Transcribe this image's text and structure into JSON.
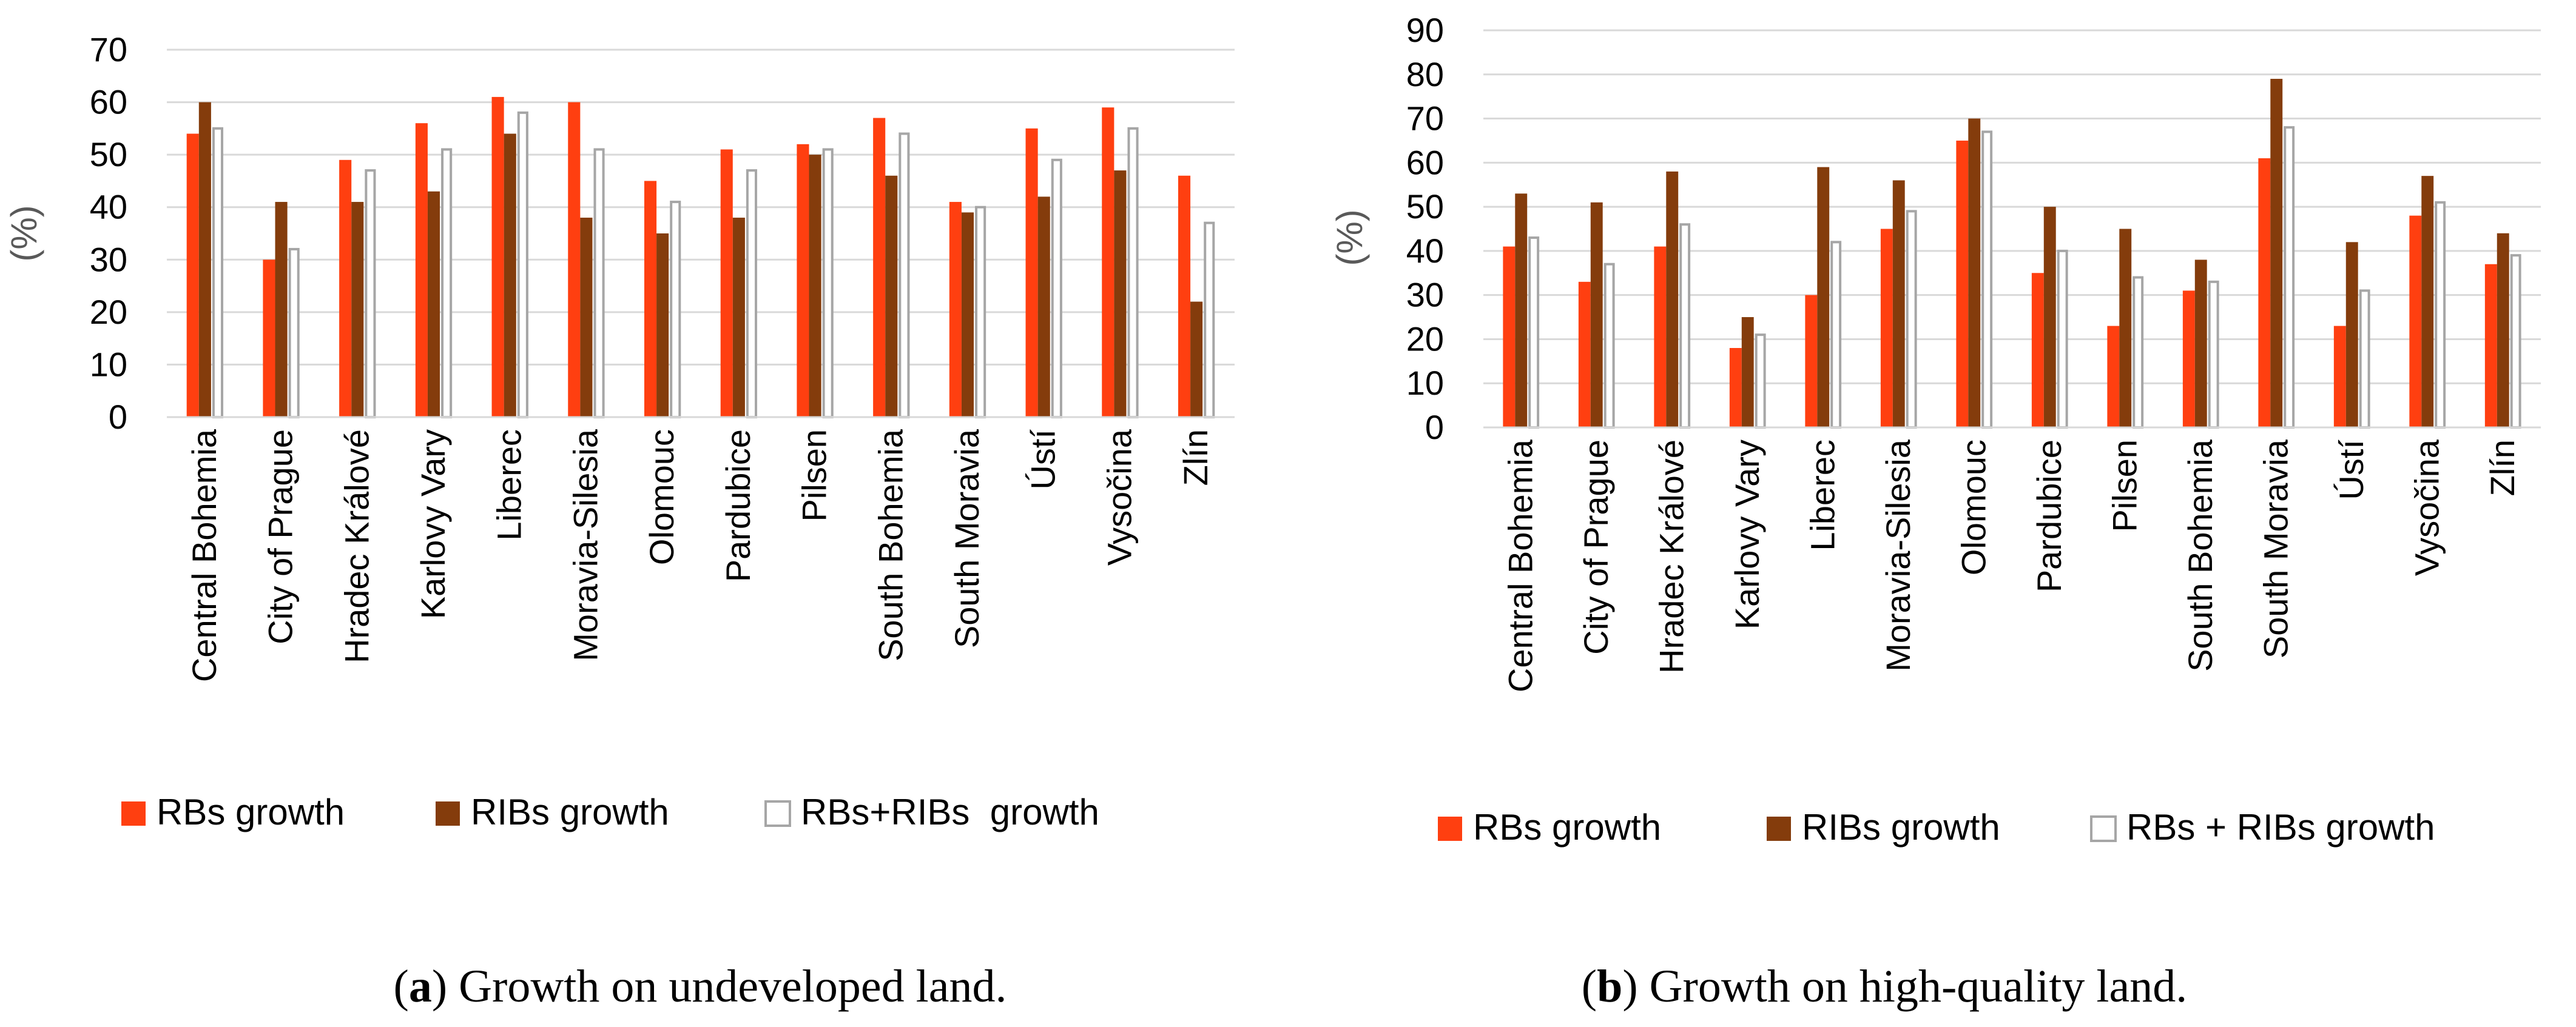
{
  "colors": {
    "rbs": "#FF3F10",
    "ribs": "#843C0C",
    "combined_fill": "#FFFFFF",
    "combined_stroke": "#A6A6A6",
    "grid": "#D9D9D9",
    "axis_text": "#595959"
  },
  "chart_data": [
    {
      "type": "bar",
      "ylabel": "(%)",
      "ylim": [
        0,
        70
      ],
      "yticks": [
        "0",
        "10",
        "20",
        "30",
        "40",
        "50",
        "60",
        "70"
      ],
      "grid": true,
      "legend": "bottom",
      "categories": [
        "Central Bohemia",
        "City of Prague",
        "Hradec Králové",
        "Karlovy Vary",
        "Liberec",
        "Moravia-Silesia",
        "Olomouc",
        "Pardubice",
        "Pilsen",
        "South Bohemia",
        "South Moravia",
        "Ústí",
        "Vysočina",
        "Zlín"
      ],
      "series": [
        {
          "name": "RBs growth",
          "values": [
            54,
            30,
            49,
            56,
            61,
            60,
            45,
            51,
            52,
            57,
            41,
            55,
            59,
            46
          ]
        },
        {
          "name": "RIBs growth",
          "values": [
            60,
            41,
            41,
            43,
            54,
            38,
            35,
            38,
            50,
            46,
            39,
            42,
            47,
            22
          ]
        },
        {
          "name": "RBs+RIBs  growth",
          "values": [
            55,
            32,
            47,
            51,
            58,
            51,
            41,
            47,
            51,
            54,
            40,
            49,
            55,
            37
          ]
        }
      ]
    },
    {
      "type": "bar",
      "ylabel": "(%)",
      "ylim": [
        0,
        90
      ],
      "yticks": [
        "0",
        "10",
        "20",
        "30",
        "40",
        "50",
        "60",
        "70",
        "80",
        "90"
      ],
      "grid": true,
      "legend": "bottom",
      "categories": [
        "Central Bohemia",
        "City of Prague",
        "Hradec Králové",
        "Karlovy Vary",
        "Liberec",
        "Moravia-Silesia",
        "Olomouc",
        "Pardubice",
        "Pilsen",
        "South Bohemia",
        "South Moravia",
        "Ústí",
        "Vysočina",
        "Zlín"
      ],
      "series": [
        {
          "name": "RBs growth",
          "values": [
            41,
            33,
            41,
            18,
            30,
            45,
            65,
            35,
            23,
            31,
            61,
            23,
            48,
            37
          ]
        },
        {
          "name": "RIBs growth",
          "values": [
            53,
            51,
            58,
            25,
            59,
            56,
            70,
            50,
            45,
            38,
            79,
            42,
            57,
            44
          ]
        },
        {
          "name": "RBs + RIBs growth",
          "values": [
            43,
            37,
            46,
            21,
            42,
            49,
            67,
            40,
            34,
            33,
            68,
            31,
            51,
            39
          ]
        }
      ]
    }
  ],
  "captions": [
    {
      "letter": "a",
      "text": " Growth on undeveloped land."
    },
    {
      "letter": "b",
      "text": " Growth on high-quality land."
    }
  ]
}
